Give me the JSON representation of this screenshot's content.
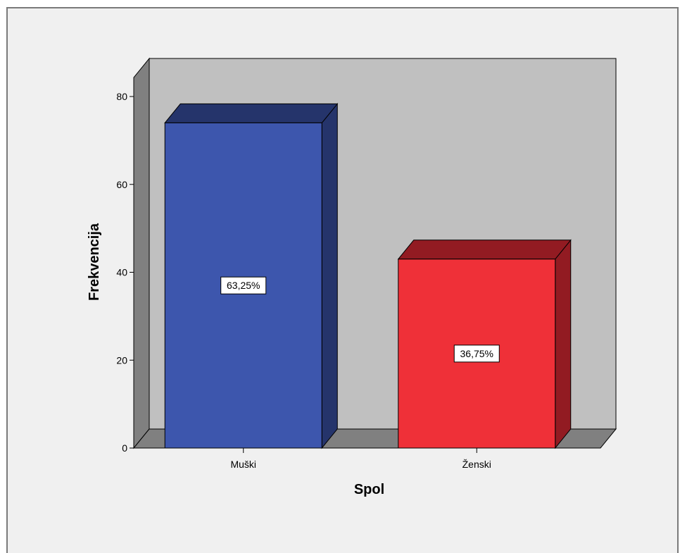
{
  "chart_data": {
    "type": "bar",
    "style": "3d",
    "categories": [
      "Muški",
      "Ženski"
    ],
    "values": [
      74,
      43
    ],
    "data_labels": [
      "63,25%",
      "36,75%"
    ],
    "xlabel": "Spol",
    "ylabel": "Frekvencija",
    "ylim": [
      0,
      80
    ],
    "yticks": [
      0,
      20,
      40,
      60,
      80
    ],
    "grid": false,
    "legend": "none",
    "colors": {
      "bars": [
        "#3d56ad",
        "#ef3038"
      ],
      "bar_tops": [
        "#25346b",
        "#921b22"
      ],
      "bar_sides": [
        "#25346b",
        "#921b22"
      ],
      "back_wall": "#c0c0c0",
      "side_wall": "#808080",
      "floor": "#808080",
      "background": "#f0f0f0"
    }
  }
}
